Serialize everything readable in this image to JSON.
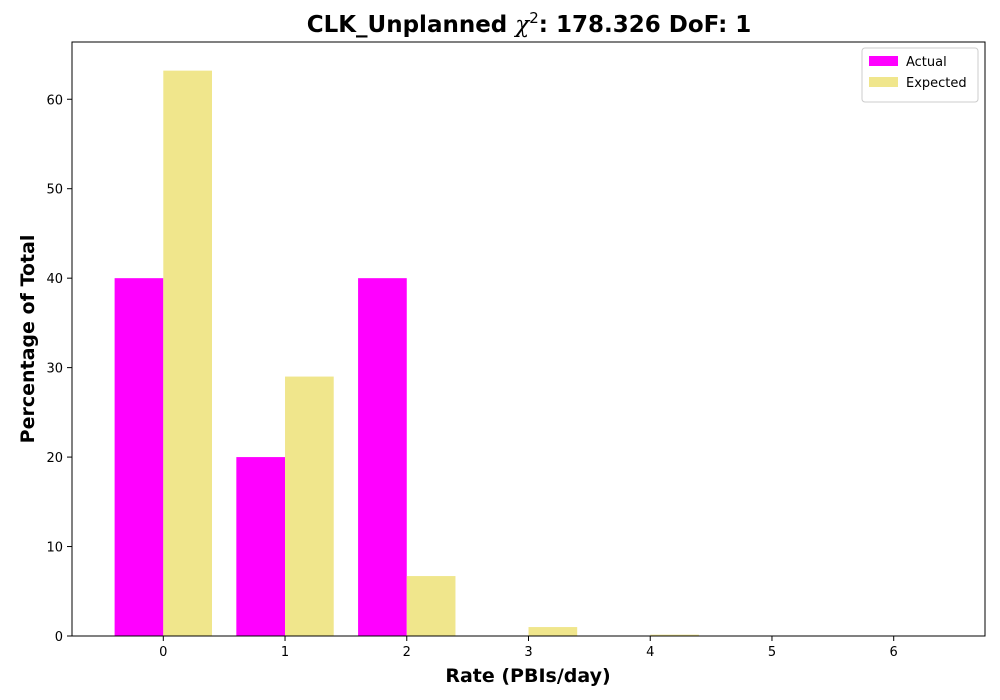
{
  "chart_data": {
    "type": "bar",
    "title_prefix": "CLK_Unplanned ",
    "title_chi": "χ",
    "title_sup": "2",
    "title_suffix": ": 178.326 DoF: 1",
    "xlabel": "Rate (PBIs/day)",
    "ylabel": "Percentage of Total",
    "categories": [
      "0",
      "1",
      "2",
      "3",
      "4",
      "5",
      "6"
    ],
    "x": [
      0,
      1,
      2,
      3,
      4,
      5,
      6
    ],
    "xlim": [
      -0.75,
      6.75
    ],
    "ylim": [
      0,
      66.4
    ],
    "yticks": [
      0,
      10,
      20,
      30,
      40,
      50,
      60
    ],
    "bar_width": 0.4,
    "grid": false,
    "legend_position": "top-right",
    "series": [
      {
        "name": "Actual",
        "color": "#ff00ff",
        "offset": -0.2,
        "values": [
          40,
          20,
          40,
          0,
          0,
          0,
          0
        ]
      },
      {
        "name": "Expected",
        "color": "#f0e68c",
        "offset": 0.2,
        "values": [
          63.2,
          29.0,
          6.7,
          1.0,
          0.15,
          0.01,
          0.0
        ]
      }
    ]
  }
}
